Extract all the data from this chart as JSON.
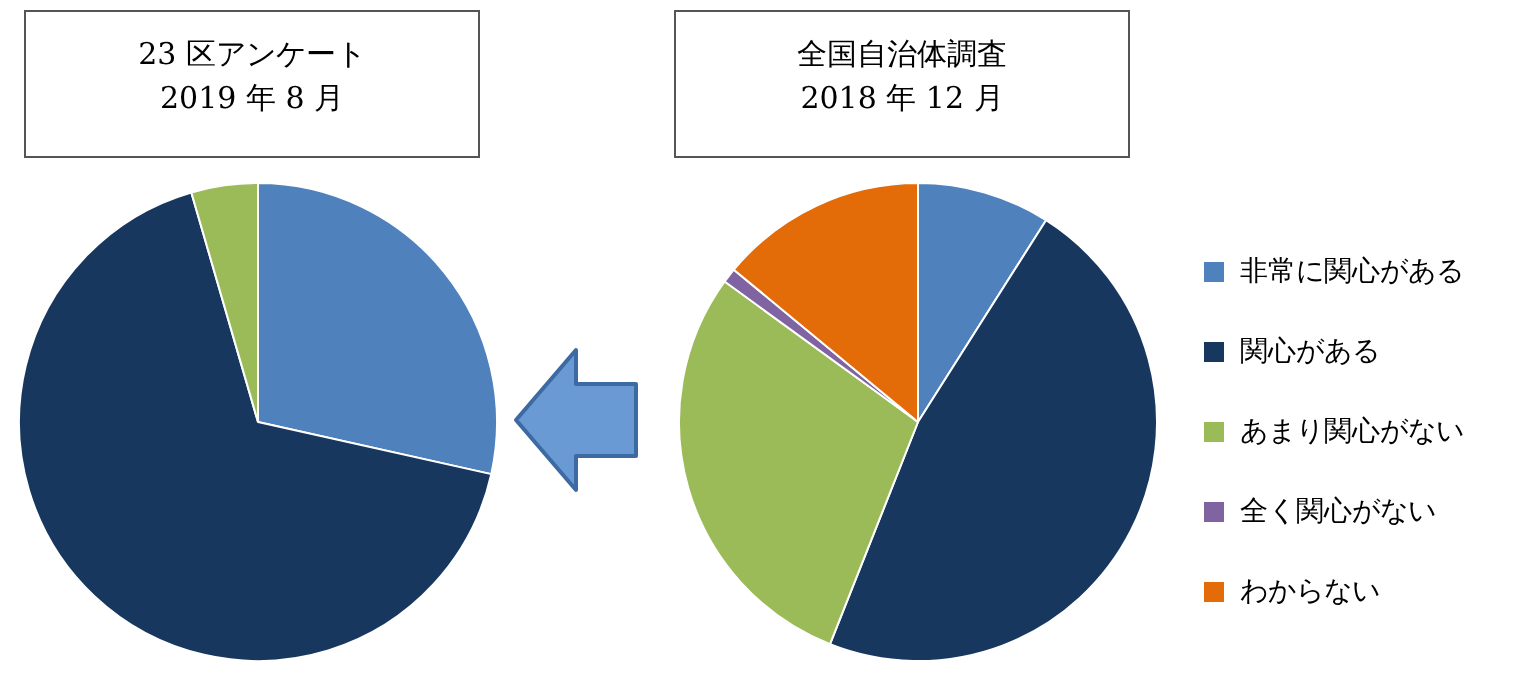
{
  "chart_data": {
    "type": "pie",
    "categories": [
      "非常に関心がある",
      "関心がある",
      "あまり関心がない",
      "全く関心がない",
      "わからない"
    ],
    "colors": [
      "#4f81bd",
      "#17375e",
      "#9bbb59",
      "#8064a2",
      "#e36c09"
    ],
    "legend": "right",
    "series": [
      {
        "name": "23 区アンケート 2019 年 8 月",
        "values": [
          28.5,
          67,
          4.5,
          0,
          0
        ]
      },
      {
        "name": "全国自治体調査 2018 年 12 月",
        "values": [
          9,
          47,
          29,
          1,
          14
        ]
      }
    ]
  }
}
